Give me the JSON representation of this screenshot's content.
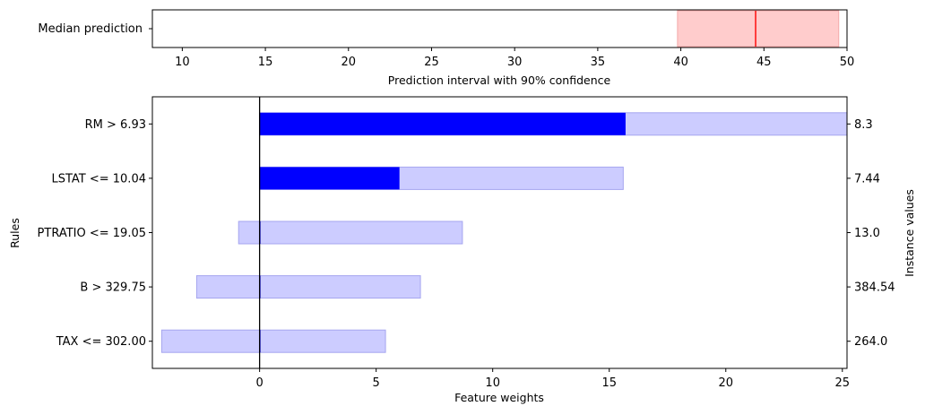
{
  "chart_data": [
    {
      "type": "bar",
      "title": "",
      "ylabel_left": "Median prediction",
      "xlabel": "Prediction interval with 90% confidence",
      "xlim": [
        8.2,
        50
      ],
      "xticks": [
        10,
        15,
        20,
        25,
        30,
        35,
        40,
        45,
        50
      ],
      "xtick_labels": [
        "10",
        "15",
        "20",
        "25",
        "30",
        "35",
        "40",
        "45",
        "50"
      ],
      "interval": {
        "low": 39.8,
        "high": 49.5
      },
      "median": 44.5,
      "colors": {
        "interval_fill": "#ffcccc",
        "interval_edge": "#f4a9a9",
        "median_line": "#ff0000"
      }
    },
    {
      "type": "bar",
      "orientation": "horizontal",
      "title": "",
      "xlabel": "Feature weights",
      "ylabel": "Rules",
      "ylabel_right": "Instance values",
      "xlim": [
        -4.6,
        25.2
      ],
      "xticks": [
        0,
        5,
        10,
        15,
        20,
        25
      ],
      "xtick_labels": [
        "0",
        "5",
        "10",
        "15",
        "20",
        "25"
      ],
      "categories": [
        "RM > 6.93",
        "LSTAT <= 10.04",
        "PTRATIO <= 19.05",
        "B > 329.75",
        "TAX <= 302.00"
      ],
      "instance_values": [
        "8.3",
        "7.44",
        "13.0",
        "384.54",
        "264.0"
      ],
      "weights": [
        15.7,
        6.0,
        0.0,
        0.0,
        0.0
      ],
      "uncertainty_low": [
        0.0,
        0.0,
        -0.9,
        -2.7,
        -4.2
      ],
      "uncertainty_high": [
        25.4,
        15.6,
        8.7,
        6.9,
        5.4
      ],
      "colors": {
        "weight_fill": "#0000ff",
        "interval_fill": "#ccccff",
        "interval_edge": "#a6a6ef",
        "zero_line": "#000000"
      }
    }
  ]
}
